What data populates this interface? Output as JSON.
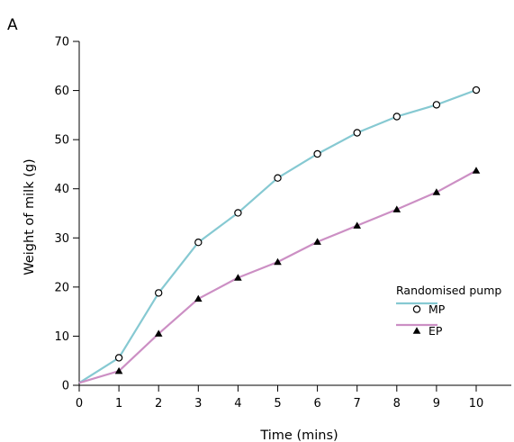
{
  "panel_label": "A",
  "chart_data": {
    "type": "line",
    "title": "",
    "xlabel": "Time (mins)",
    "ylabel": "Weight of milk (g)",
    "xlim": [
      0,
      10
    ],
    "ylim": [
      0,
      70
    ],
    "x_ticks": [
      "0",
      "1",
      "2",
      "3",
      "4",
      "5",
      "6",
      "7",
      "8",
      "9",
      "10"
    ],
    "y_ticks": [
      "0",
      "10",
      "20",
      "30",
      "40",
      "50",
      "60",
      "70"
    ],
    "x": [
      0,
      1,
      2,
      3,
      4,
      5,
      6,
      7,
      8,
      9,
      10
    ],
    "grid": false,
    "legend": {
      "title": "Randomised pump",
      "position": "right-center"
    },
    "series": [
      {
        "name": "MP",
        "marker": "open-circle",
        "color": "#86c9d2",
        "values": [
          0.5,
          5.6,
          18.8,
          29.1,
          35.1,
          42.2,
          47.1,
          51.4,
          54.7,
          57.1,
          60.1
        ]
      },
      {
        "name": "EP",
        "marker": "filled-triangle",
        "color": "#cc8fc4",
        "values": [
          0.5,
          2.9,
          10.5,
          17.6,
          21.9,
          25.1,
          29.2,
          32.5,
          35.8,
          39.3,
          43.7
        ]
      }
    ]
  }
}
